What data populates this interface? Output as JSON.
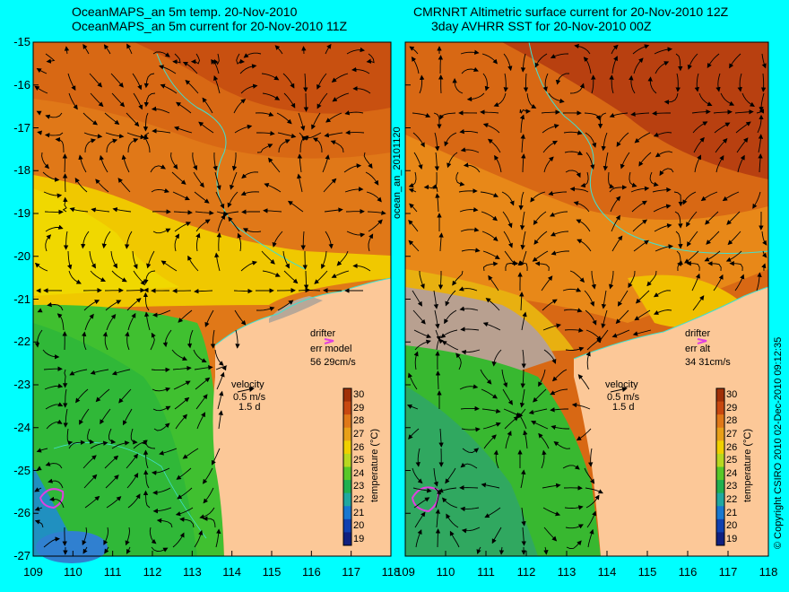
{
  "left_panel": {
    "title_line1": "OceanMAPS_an 5m temp. 20-Nov-2010",
    "title_line2": "OceanMAPS_an 5m current for 20-Nov-2010 11Z",
    "drifter_label": "drifter",
    "err_label": "err model",
    "err_value": "56 29cm/s",
    "velocity_label": "velocity",
    "velocity_scale": "0.5 m/s",
    "velocity_time": "1.5 d"
  },
  "right_panel": {
    "title_line1": "CMRNRT Altimetric surface current for 20-Nov-2010 12Z",
    "title_line2": "3day AVHRR SST for 20-Nov-2010 00Z",
    "drifter_label": "drifter",
    "err_label": "err alt",
    "err_value": "34 31cm/s",
    "velocity_label": "velocity",
    "velocity_scale": "0.5 m/s",
    "velocity_time": "1.5 d"
  },
  "y_ticks": [
    "-15",
    "-16",
    "-17",
    "-18",
    "-19",
    "-20",
    "-21",
    "-22",
    "-23",
    "-24",
    "-25",
    "-26",
    "-27"
  ],
  "x_ticks": [
    "109",
    "110",
    "111",
    "112",
    "113",
    "114",
    "115",
    "116",
    "117",
    "118"
  ],
  "colorbar": {
    "title": "temperature (°C)",
    "ticks": [
      "30",
      "29",
      "28",
      "27",
      "26",
      "25",
      "24",
      "23",
      "22",
      "21",
      "20",
      "19"
    ],
    "colors": [
      "#a03008",
      "#c84810",
      "#e07818",
      "#e8a018",
      "#f0d000",
      "#b8d820",
      "#58c828",
      "#20b050",
      "#20a8a0",
      "#1878d0",
      "#1040b0",
      "#102080"
    ]
  },
  "side_stamp": "ocean_an_20101120",
  "copyright": "© Copyright CSIRO 2010   02-Dec-2010 09:12:35",
  "colors": {
    "background": "#00ffff",
    "land": "#fcc898",
    "coast": "#40e0d0",
    "drifter": "#e040e0",
    "arrows": "#000000"
  }
}
